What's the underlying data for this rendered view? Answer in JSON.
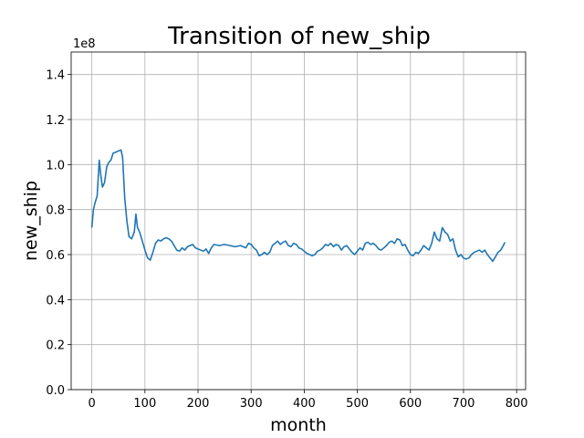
{
  "chart_data": {
    "type": "line",
    "title": "Transition of new_ship",
    "xlabel": "month",
    "ylabel": "new_ship",
    "y_offset_label": "1e8",
    "color": "#1f77b4",
    "grid": true,
    "xlim": [
      -38.9,
      816.9
    ],
    "xticks": [
      0,
      100,
      200,
      300,
      400,
      500,
      600,
      700,
      800
    ],
    "ylim": [
      0,
      1.5
    ],
    "yticks": [
      {
        "value": 0,
        "label": "0.0"
      },
      {
        "value": 0.2,
        "label": "0.2"
      },
      {
        "value": 0.4,
        "label": "0.4"
      },
      {
        "value": 0.6,
        "label": "0.6"
      },
      {
        "value": 0.8,
        "label": "0.8"
      },
      {
        "value": 1.0,
        "label": "1.0"
      },
      {
        "value": 1.2,
        "label": "1.2"
      },
      {
        "value": 1.4,
        "label": "1.4"
      }
    ],
    "x": [
      0,
      3,
      6,
      10,
      14,
      17,
      20,
      24,
      28,
      32,
      36,
      40,
      45,
      50,
      55,
      58,
      62,
      66,
      70,
      75,
      80,
      83,
      86,
      90,
      95,
      100,
      105,
      110,
      115,
      120,
      125,
      130,
      135,
      140,
      145,
      150,
      155,
      160,
      165,
      170,
      175,
      180,
      185,
      190,
      195,
      200,
      205,
      210,
      215,
      220,
      225,
      230,
      240,
      250,
      260,
      270,
      280,
      290,
      295,
      300,
      305,
      310,
      315,
      320,
      325,
      330,
      335,
      340,
      345,
      350,
      355,
      360,
      365,
      370,
      375,
      380,
      385,
      390,
      395,
      400,
      405,
      410,
      415,
      420,
      425,
      430,
      435,
      440,
      445,
      450,
      455,
      460,
      465,
      470,
      475,
      480,
      485,
      490,
      495,
      500,
      505,
      510,
      515,
      520,
      525,
      530,
      535,
      540,
      545,
      550,
      555,
      560,
      565,
      570,
      575,
      580,
      585,
      590,
      595,
      600,
      605,
      610,
      615,
      620,
      625,
      630,
      635,
      640,
      645,
      650,
      655,
      660,
      665,
      670,
      675,
      680,
      685,
      690,
      695,
      700,
      705,
      710,
      715,
      720,
      725,
      730,
      735,
      740,
      745,
      750,
      755,
      760,
      765,
      770,
      775,
      778
    ],
    "values": [
      0.72,
      0.8,
      0.83,
      0.86,
      1.02,
      0.95,
      0.9,
      0.92,
      0.99,
      1.01,
      1.02,
      1.05,
      1.055,
      1.06,
      1.065,
      1.03,
      0.85,
      0.75,
      0.68,
      0.67,
      0.7,
      0.78,
      0.72,
      0.7,
      0.66,
      0.62,
      0.585,
      0.575,
      0.61,
      0.65,
      0.665,
      0.66,
      0.67,
      0.675,
      0.67,
      0.66,
      0.64,
      0.62,
      0.615,
      0.63,
      0.62,
      0.635,
      0.64,
      0.645,
      0.63,
      0.625,
      0.62,
      0.615,
      0.625,
      0.605,
      0.63,
      0.645,
      0.64,
      0.645,
      0.64,
      0.635,
      0.64,
      0.63,
      0.65,
      0.645,
      0.63,
      0.62,
      0.595,
      0.6,
      0.61,
      0.6,
      0.61,
      0.64,
      0.65,
      0.66,
      0.645,
      0.655,
      0.66,
      0.64,
      0.635,
      0.65,
      0.645,
      0.63,
      0.625,
      0.615,
      0.605,
      0.6,
      0.595,
      0.6,
      0.615,
      0.62,
      0.63,
      0.645,
      0.64,
      0.65,
      0.635,
      0.645,
      0.64,
      0.62,
      0.635,
      0.64,
      0.625,
      0.61,
      0.6,
      0.615,
      0.63,
      0.62,
      0.65,
      0.655,
      0.645,
      0.65,
      0.64,
      0.625,
      0.62,
      0.63,
      0.64,
      0.655,
      0.66,
      0.65,
      0.67,
      0.665,
      0.64,
      0.645,
      0.62,
      0.6,
      0.595,
      0.61,
      0.605,
      0.62,
      0.64,
      0.63,
      0.62,
      0.65,
      0.7,
      0.67,
      0.66,
      0.72,
      0.7,
      0.69,
      0.66,
      0.67,
      0.62,
      0.59,
      0.6,
      0.585,
      0.58,
      0.585,
      0.6,
      0.61,
      0.615,
      0.62,
      0.61,
      0.62,
      0.6,
      0.585,
      0.57,
      0.59,
      0.61,
      0.62,
      0.64,
      0.655
    ]
  }
}
